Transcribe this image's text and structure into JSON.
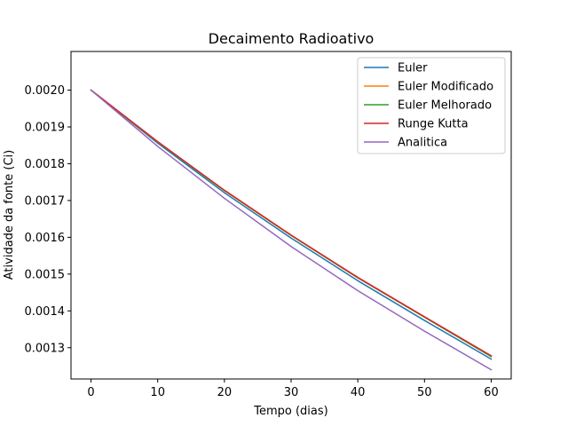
{
  "chart_data": {
    "type": "line",
    "title": "Decaimento Radioativo",
    "xlabel": "Tempo (dias)",
    "ylabel": "Atividade da fonte (Ci)",
    "xlim": [
      -3,
      63
    ],
    "ylim": [
      0.001215,
      0.002105
    ],
    "xticks": [
      0,
      10,
      20,
      30,
      40,
      50,
      60
    ],
    "xtick_labels": [
      "0",
      "10",
      "20",
      "30",
      "40",
      "50",
      "60"
    ],
    "yticks": [
      0.0013,
      0.0014,
      0.0015,
      0.0016,
      0.0017,
      0.0018,
      0.0019,
      0.002
    ],
    "ytick_labels": [
      "0.0013",
      "0.0014",
      "0.0015",
      "0.0016",
      "0.0017",
      "0.0018",
      "0.0019",
      "0.0020"
    ],
    "grid": false,
    "legend_position": "top-right",
    "x": [
      0,
      10,
      20,
      30,
      40,
      50,
      60
    ],
    "series": [
      {
        "name": "Euler",
        "color": "#1f77b4",
        "values": [
          0.002,
          0.001856,
          0.001721,
          0.001598,
          0.001482,
          0.001374,
          0.001269
        ]
      },
      {
        "name": "Euler Modificado",
        "color": "#ff7f0e",
        "values": [
          0.002,
          0.001859,
          0.001727,
          0.001605,
          0.00149,
          0.001383,
          0.001276
        ]
      },
      {
        "name": "Euler Melhorado",
        "color": "#2ca02c",
        "values": [
          0.002,
          0.001859,
          0.001727,
          0.001605,
          0.00149,
          0.001383,
          0.001276
        ]
      },
      {
        "name": "Runge Kutta",
        "color": "#d62728",
        "values": [
          0.002,
          0.00186,
          0.001728,
          0.001606,
          0.001491,
          0.001384,
          0.001278
        ]
      },
      {
        "name": "Analitica",
        "color": "#9467bd",
        "values": [
          0.002,
          0.001847,
          0.001706,
          0.001575,
          0.001455,
          0.001345,
          0.00124
        ]
      }
    ]
  }
}
